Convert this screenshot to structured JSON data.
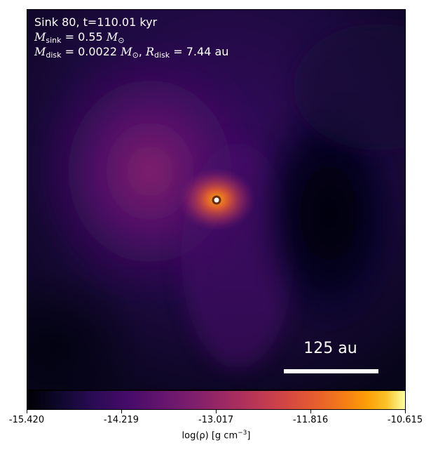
{
  "chart_data": {
    "type": "heatmap",
    "colormap": "inferno",
    "annotations": {
      "line1": "Sink 80, t=110.01 kyr",
      "line2_symbol": "M",
      "line2_sub": "sink",
      "line2_value": " = 0.55 ",
      "line2_unit_symbol": "M",
      "line2_unit_sub": "⊙",
      "line3_symbol": "M",
      "line3_sub": "disk",
      "line3_value": " = 0.0022 ",
      "line3_unit_symbol": "M",
      "line3_unit_sub": "⊙",
      "line3_sep": ", ",
      "line3_r_symbol": "R",
      "line3_r_sub": "disk",
      "line3_r_value": " = 7.44 au"
    },
    "scale_bar": {
      "label": "125 au",
      "length_au": 125
    },
    "sink_marker": {
      "edge_color": "#6b2b0e",
      "fill_color": "#ffffff"
    },
    "colorbar": {
      "min": -15.42,
      "max": -10.615,
      "ticks": [
        "-15.420",
        "-14.219",
        "-13.017",
        "-11.816",
        "-10.615"
      ],
      "label_main": "log(ρ) [g cm",
      "label_sup": "−3",
      "label_end": "]"
    }
  }
}
